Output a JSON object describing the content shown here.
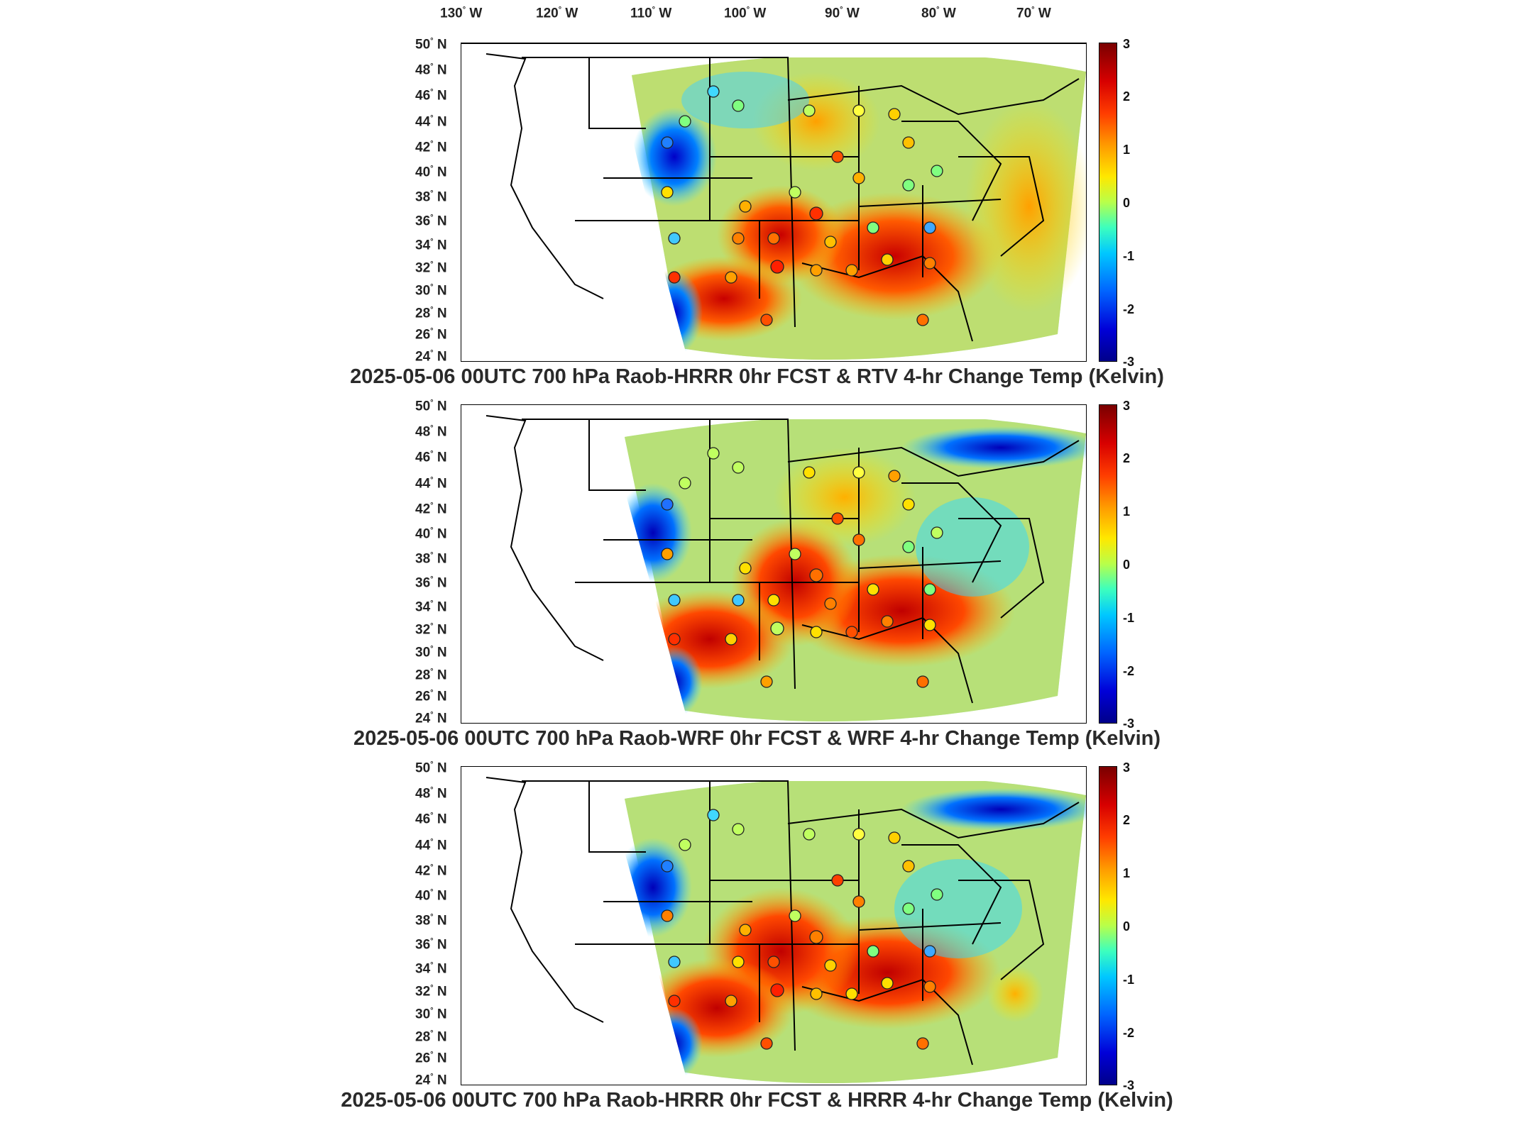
{
  "lon_labels": [
    "130",
    "120",
    "110",
    "100",
    "90",
    "80",
    "70"
  ],
  "lon_suffix": "W",
  "lat_labels": [
    "50",
    "48",
    "46",
    "44",
    "42",
    "40",
    "38",
    "36",
    "34",
    "32",
    "30",
    "28",
    "26",
    "24"
  ],
  "lat_suffix": "N",
  "colorbar_ticks": [
    "3",
    "2",
    "1",
    "0",
    "-1",
    "-2",
    "-3"
  ],
  "colorbar_colors": [
    "#7a0000",
    "#d70000",
    "#ff3c00",
    "#ff9a00",
    "#ffe800",
    "#b8ff4a",
    "#3cffbe",
    "#00c8ff",
    "#0064ff",
    "#0000d8",
    "#00008a"
  ],
  "colorbar_range": [
    -3,
    3
  ],
  "panels": [
    {
      "title": "2025-05-06 00UTC 700 hPa Raob-HRRR 0hr FCST & RTV 4-hr Change Temp (Kelvin)"
    },
    {
      "title": "2025-05-06 00UTC 700 hPa Raob-WRF 0hr FCST & WRF 4-hr Change Temp (Kelvin)"
    },
    {
      "title": "2025-05-06 00UTC 700 hPa Raob-HRRR 0hr FCST & HRRR 4-hr Change Temp (Kelvin)"
    }
  ]
}
